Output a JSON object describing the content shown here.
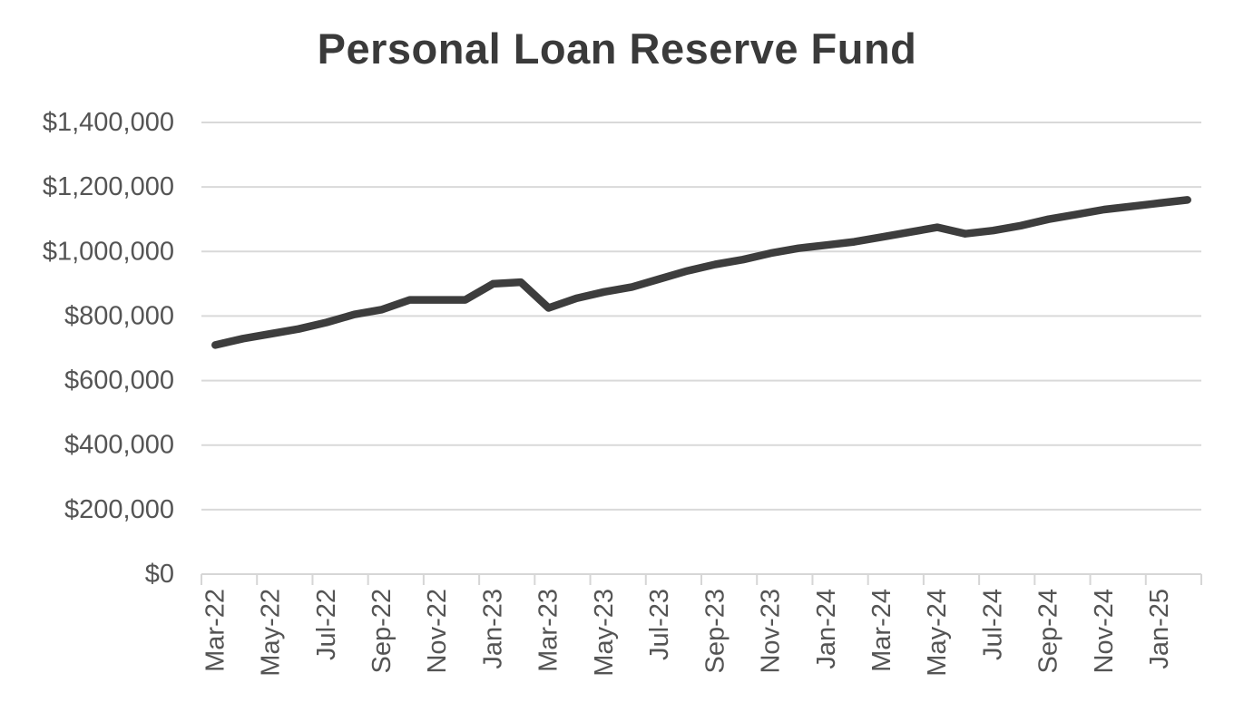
{
  "chart_data": {
    "type": "line",
    "title": "Personal Loan Reserve Fund",
    "xlabel": "",
    "ylabel": "",
    "categories": [
      "Mar-22",
      "Apr-22",
      "May-22",
      "Jun-22",
      "Jul-22",
      "Aug-22",
      "Sep-22",
      "Oct-22",
      "Nov-22",
      "Dec-22",
      "Jan-23",
      "Feb-23",
      "Mar-23",
      "Apr-23",
      "May-23",
      "Jun-23",
      "Jul-23",
      "Aug-23",
      "Sep-23",
      "Oct-23",
      "Nov-23",
      "Dec-23",
      "Jan-24",
      "Feb-24",
      "Mar-24",
      "Apr-24",
      "May-24",
      "Jun-24",
      "Jul-24",
      "Aug-24",
      "Sep-24",
      "Oct-24",
      "Nov-24",
      "Dec-24",
      "Jan-25",
      "Feb-25"
    ],
    "series": [
      {
        "name": "Reserve Fund Balance",
        "values": [
          710000,
          730000,
          745000,
          760000,
          780000,
          805000,
          820000,
          850000,
          850000,
          850000,
          900000,
          905000,
          825000,
          855000,
          875000,
          890000,
          915000,
          940000,
          960000,
          975000,
          995000,
          1010000,
          1020000,
          1030000,
          1045000,
          1060000,
          1075000,
          1055000,
          1065000,
          1080000,
          1100000,
          1115000,
          1130000,
          1140000,
          1150000,
          1160000
        ]
      }
    ],
    "x_tick_labels": [
      "Mar-22",
      "May-22",
      "Jul-22",
      "Sep-22",
      "Nov-22",
      "Jan-23",
      "Mar-23",
      "May-23",
      "Jul-23",
      "Sep-23",
      "Nov-23",
      "Jan-24",
      "Mar-24",
      "May-24",
      "Jul-24",
      "Sep-24",
      "Nov-24",
      "Jan-25"
    ],
    "x_tick_every": 2,
    "y_tick_labels": [
      "$0",
      "$200,000",
      "$400,000",
      "$600,000",
      "$800,000",
      "$1,000,000",
      "$1,200,000",
      "$1,400,000"
    ],
    "y_tick_values": [
      0,
      200000,
      400000,
      600000,
      800000,
      1000000,
      1200000,
      1400000
    ],
    "ylim": [
      0,
      1400000
    ],
    "grid": "horizontal",
    "legend": "none",
    "x_label_rotation": -90,
    "colors": {
      "line": "#3d3d3d",
      "title": "#3a3a3a",
      "axis_labels": "#545454",
      "gridline": "#d9d9d9",
      "axis": "#d6d6d6",
      "background": "#ffffff"
    }
  }
}
